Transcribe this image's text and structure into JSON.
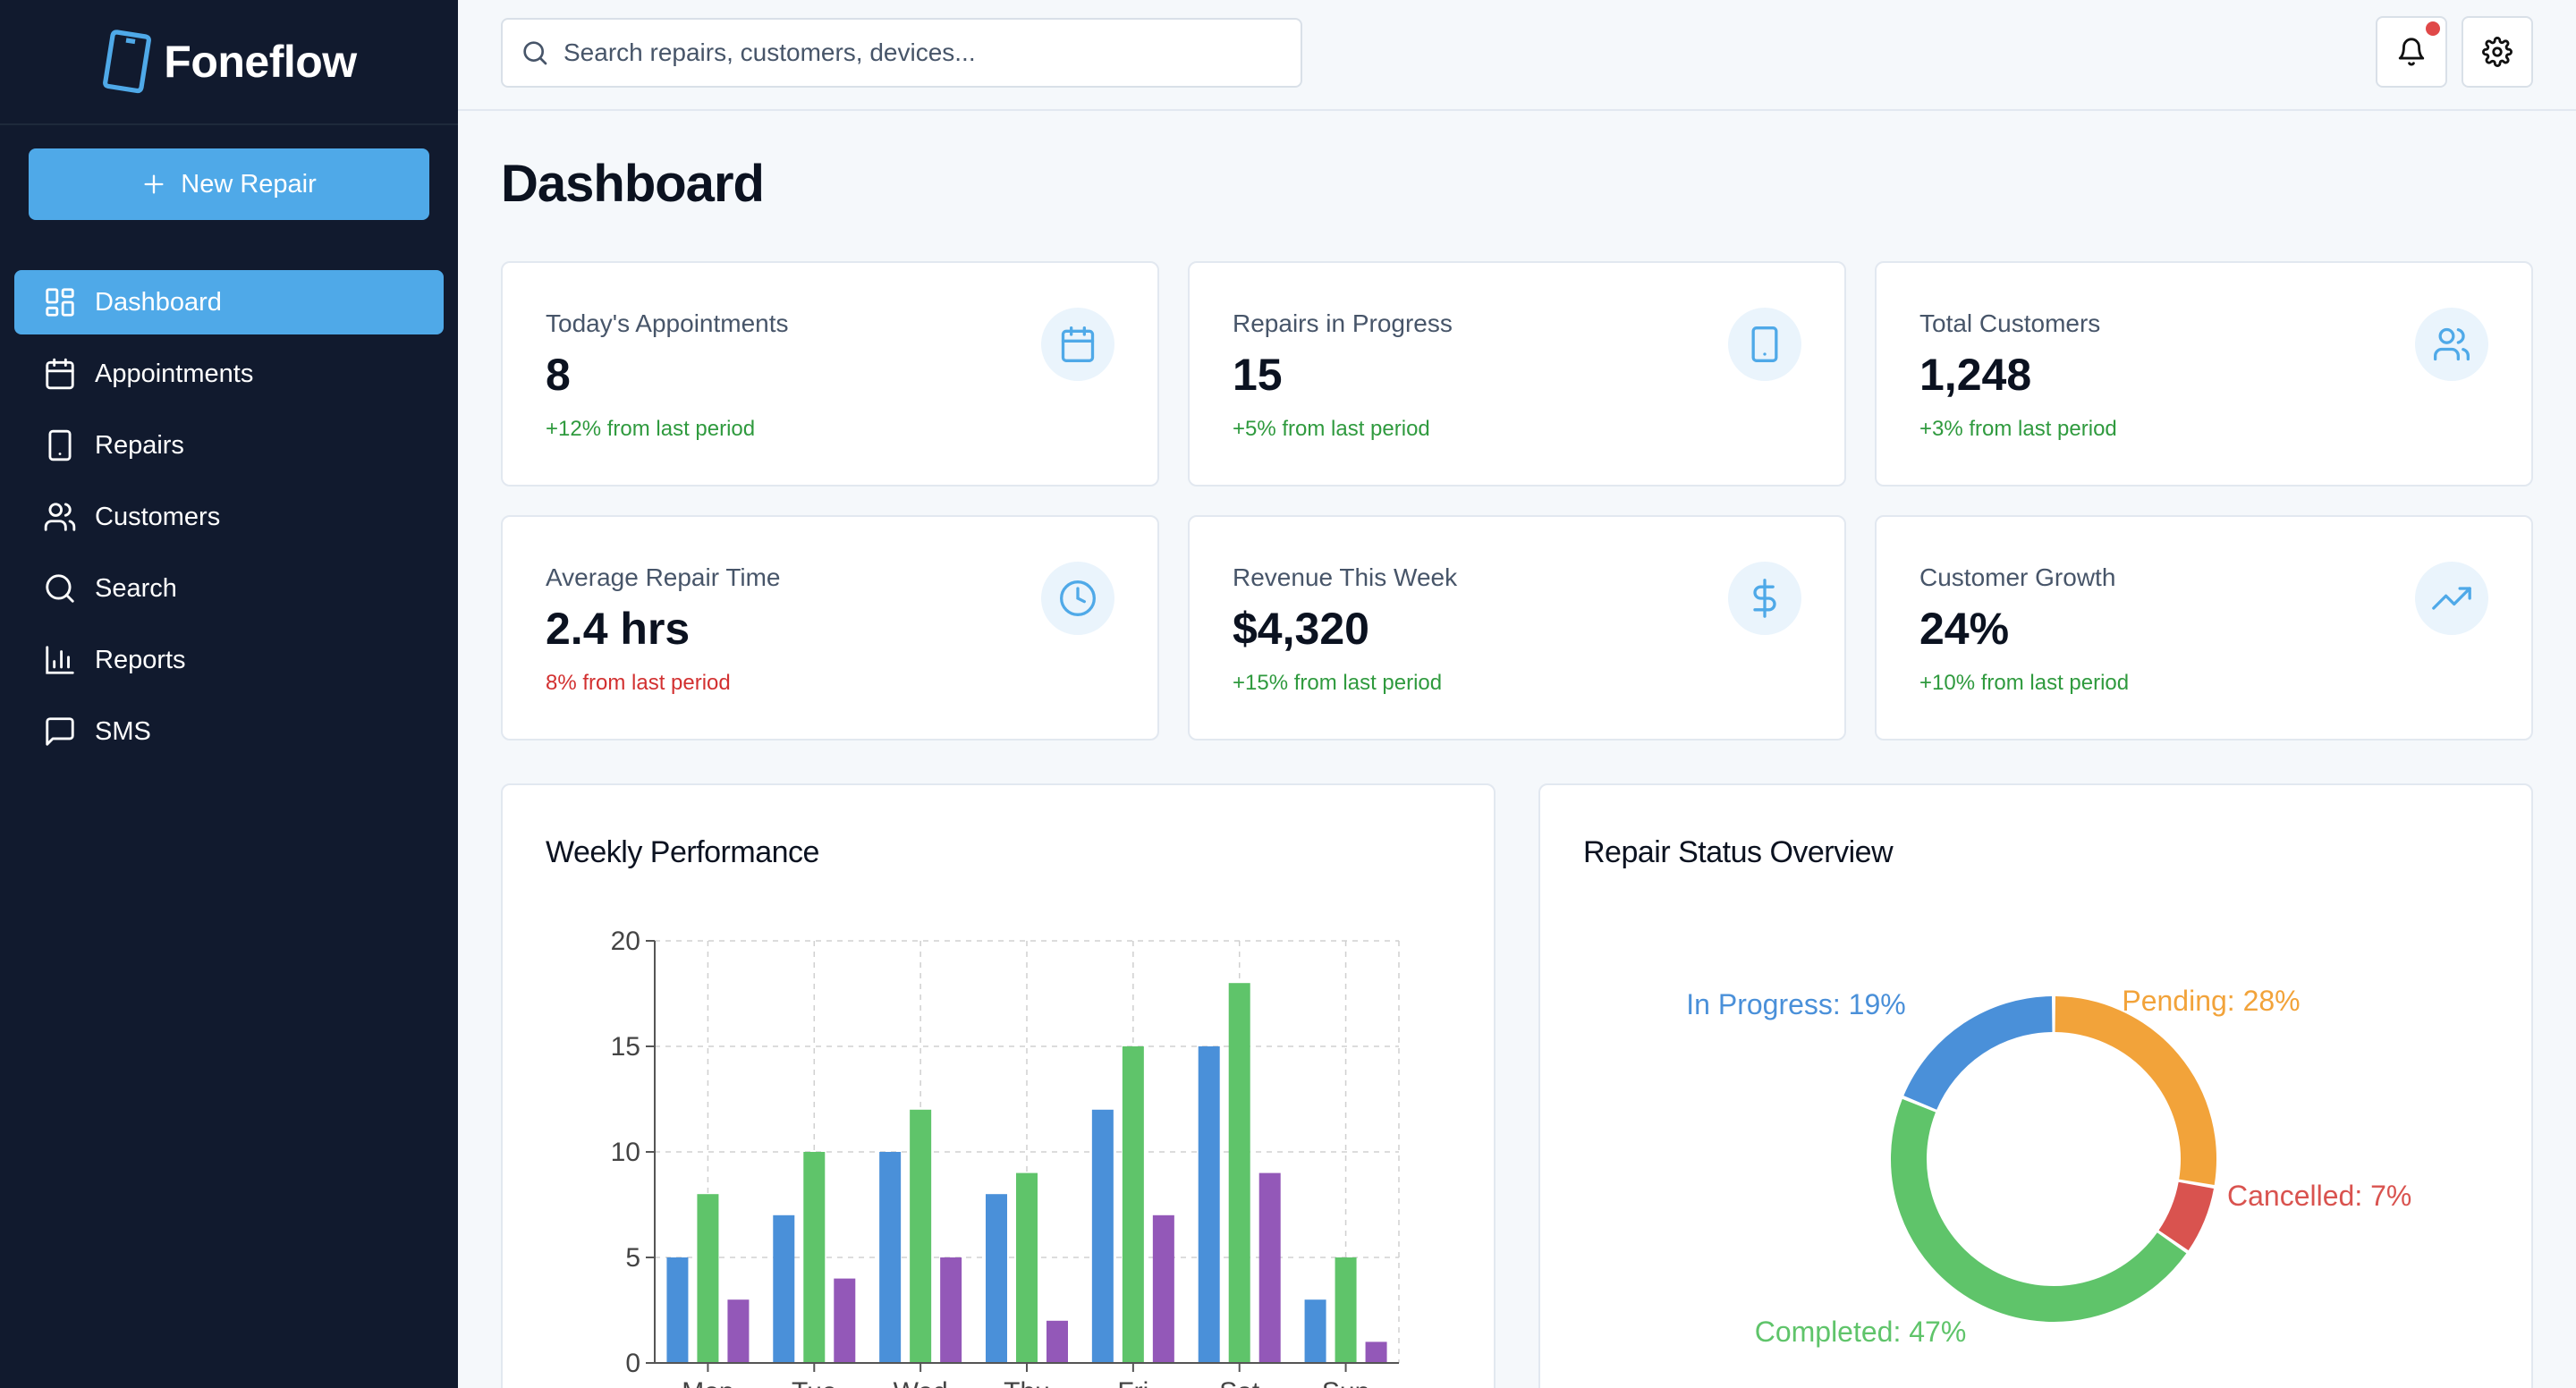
{
  "app": {
    "name": "Foneflow"
  },
  "sidebar": {
    "new_repair_label": "New Repair",
    "items": [
      {
        "label": "Dashboard",
        "icon": "dashboard-grid-icon",
        "active": true
      },
      {
        "label": "Appointments",
        "icon": "calendar-icon",
        "active": false
      },
      {
        "label": "Repairs",
        "icon": "smartphone-icon",
        "active": false
      },
      {
        "label": "Customers",
        "icon": "users-icon",
        "active": false
      },
      {
        "label": "Search",
        "icon": "search-icon",
        "active": false
      },
      {
        "label": "Reports",
        "icon": "bar-chart-icon",
        "active": false
      },
      {
        "label": "SMS",
        "icon": "message-icon",
        "active": false
      }
    ]
  },
  "topbar": {
    "search_placeholder": "Search repairs, customers, devices...",
    "notifications_icon": "bell-icon",
    "settings_icon": "gear-icon"
  },
  "page": {
    "title": "Dashboard"
  },
  "stats": [
    {
      "label": "Today's Appointments",
      "value": "8",
      "change": "+12% from last period",
      "trend": "up",
      "icon": "calendar-icon"
    },
    {
      "label": "Repairs in Progress",
      "value": "15",
      "change": "+5% from last period",
      "trend": "up",
      "icon": "smartphone-icon"
    },
    {
      "label": "Total Customers",
      "value": "1,248",
      "change": "+3% from last period",
      "trend": "up",
      "icon": "users-icon"
    },
    {
      "label": "Average Repair Time",
      "value": "2.4 hrs",
      "change": "8% from last period",
      "trend": "down",
      "icon": "clock-icon"
    },
    {
      "label": "Revenue This Week",
      "value": "$4,320",
      "change": "+15% from last period",
      "trend": "up",
      "icon": "dollar-icon"
    },
    {
      "label": "Customer Growth",
      "value": "24%",
      "change": "+10% from last period",
      "trend": "up",
      "icon": "trending-up-icon"
    }
  ],
  "colors": {
    "accent": "#4fa9e8",
    "positive": "#2f9a3e",
    "negative": "#d23030",
    "sidebar_bg": "#111a2e"
  },
  "panels": {
    "weekly_title": "Weekly Performance",
    "status_title": "Repair Status Overview"
  },
  "chart_data": [
    {
      "type": "bar",
      "title": "Weekly Performance",
      "categories": [
        "Mon",
        "Tue",
        "Wed",
        "Thu",
        "Fri",
        "Sat",
        "Sun"
      ],
      "series": [
        {
          "color": "#4a90d9",
          "values": [
            5,
            7,
            10,
            8,
            12,
            15,
            3
          ]
        },
        {
          "color": "#5fc46a",
          "values": [
            8,
            10,
            12,
            9,
            15,
            18,
            5
          ]
        },
        {
          "color": "#9358b8",
          "values": [
            3,
            4,
            5,
            2,
            7,
            9,
            1
          ]
        }
      ],
      "ylim": [
        0,
        20
      ],
      "yticks": [
        0,
        5,
        10,
        15,
        20
      ],
      "grid": true
    },
    {
      "type": "pie",
      "title": "Repair Status Overview",
      "donut": true,
      "slices": [
        {
          "label": "Pending",
          "value": 28,
          "color": "#f2a33a",
          "text": "Pending: 28%"
        },
        {
          "label": "Cancelled",
          "value": 7,
          "color": "#d9534f",
          "text": "Cancelled: 7%"
        },
        {
          "label": "Completed",
          "value": 47,
          "color": "#5fc46a",
          "text": "Completed: 47%"
        },
        {
          "label": "In Progress",
          "value": 19,
          "color": "#4a90d9",
          "text": "In Progress: 19%"
        }
      ]
    }
  ]
}
